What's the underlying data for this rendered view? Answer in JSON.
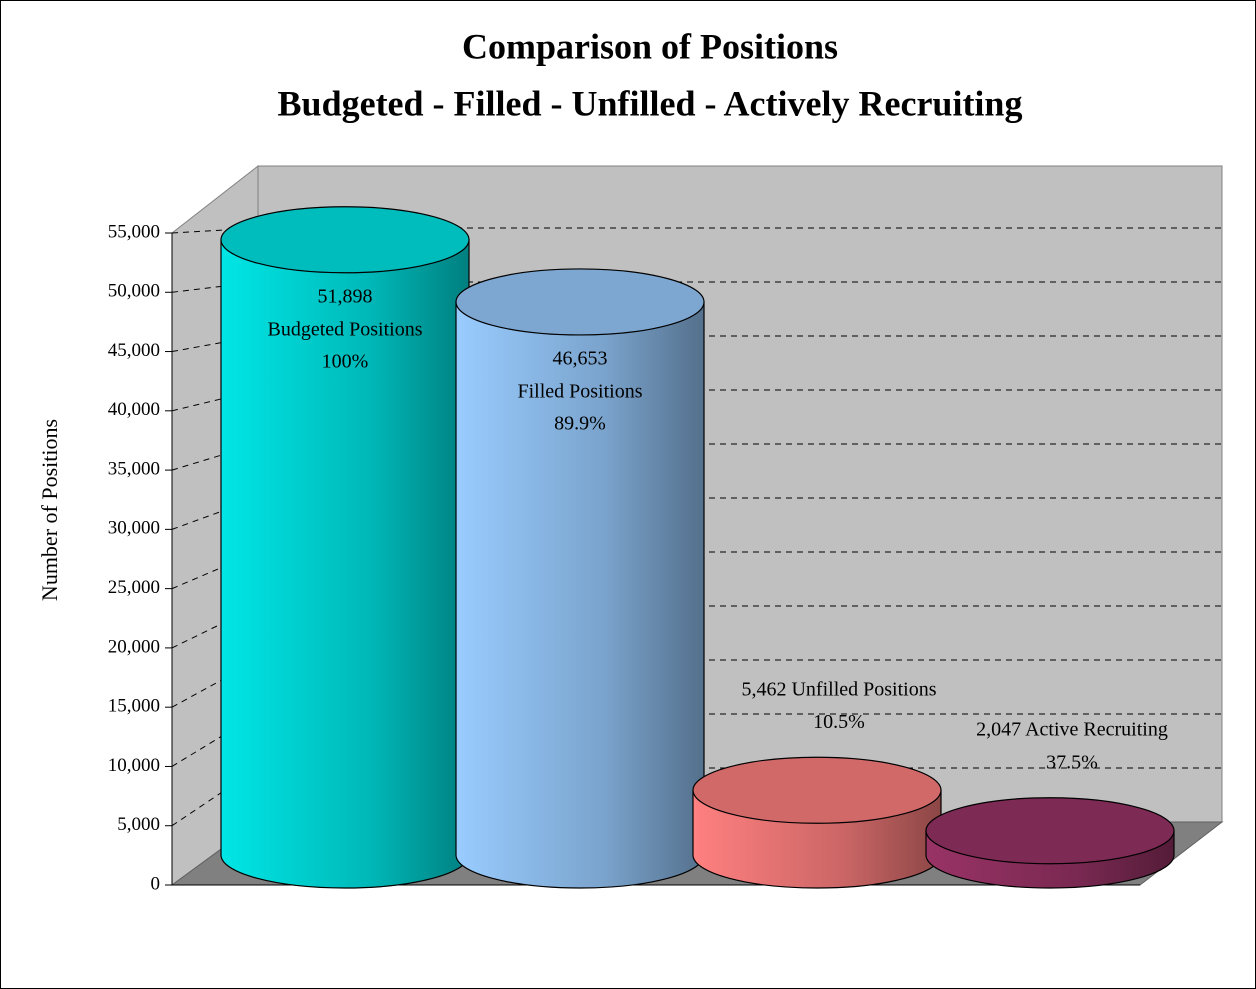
{
  "chart_data": {
    "type": "cylinder",
    "title": "Comparison of Positions",
    "subtitle": "Budgeted - Filled - Unfilled - Actively Recruiting",
    "y_label": "Number of Positions",
    "categories": [
      "Budgeted Positions",
      "Filled Positions",
      "Unfilled Positions",
      "Active Recruiting"
    ],
    "values": [
      51898,
      46653,
      5462,
      2047
    ],
    "value_labels": [
      "51,898",
      "46,653",
      "5,462",
      "2,047"
    ],
    "percent_labels": [
      "100%",
      "89.9%",
      "10.5%",
      "37.5%"
    ],
    "colors": [
      "#00e6e6",
      "#99ccff",
      "#ff8080",
      "#993366"
    ],
    "ylim": [
      0,
      55000
    ],
    "yticks": [
      0,
      {
        "value": 5000,
        "label": "5,000"
      },
      {
        "value": 10000,
        "label": "10,000"
      },
      {
        "value": 15000,
        "label": "15,000"
      },
      {
        "value": 20000,
        "label": "20,000"
      },
      {
        "value": 25000,
        "label": "25,000"
      },
      {
        "value": 30000,
        "label": "30,000"
      },
      {
        "value": 35000,
        "label": "35,000"
      },
      {
        "value": 40000,
        "label": "40,000"
      },
      {
        "value": 45000,
        "label": "45,000"
      },
      {
        "value": 50000,
        "label": "50,000"
      },
      {
        "value": 55000,
        "label": "55,000"
      }
    ],
    "grid": true
  }
}
